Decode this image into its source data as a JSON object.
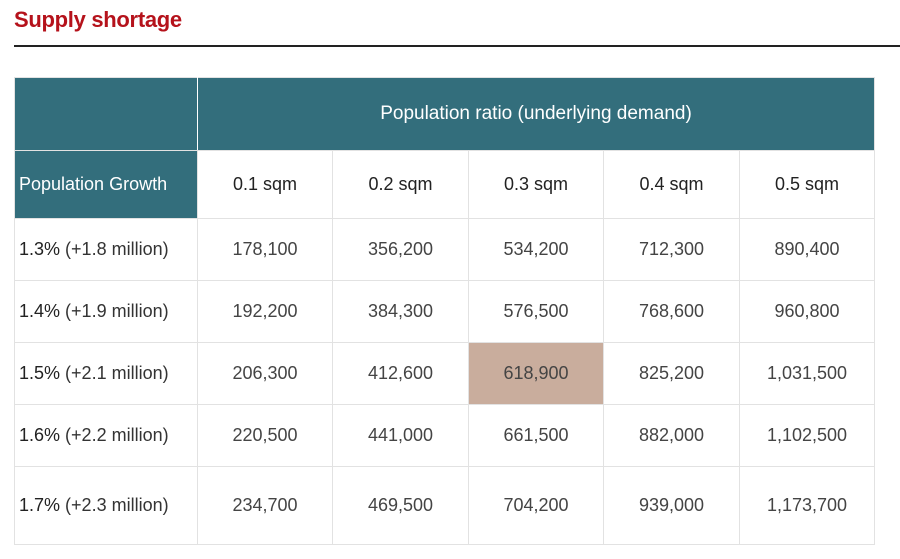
{
  "title": "Supply shortage",
  "chart_data": {
    "type": "table",
    "title": "Supply shortage",
    "column_group_header": "Population ratio (underlying demand)",
    "row_header": "Population Growth",
    "columns": [
      "0.1 sqm",
      "0.2 sqm",
      "0.3 sqm",
      "0.4 sqm",
      "0.5 sqm"
    ],
    "rows": [
      {
        "rate": "1.3%",
        "detail": "(+1.8 million)",
        "values": [
          "178,100",
          "356,200",
          "534,200",
          "712,300",
          "890,400"
        ]
      },
      {
        "rate": "1.4%",
        "detail": "(+1.9 million)",
        "values": [
          "192,200",
          "384,300",
          "576,500",
          "768,600",
          "960,800"
        ]
      },
      {
        "rate": "1.5%",
        "detail": "(+2.1 million)",
        "values": [
          "206,300",
          "412,600",
          "618,900",
          "825,200",
          "1,031,500"
        ]
      },
      {
        "rate": "1.6%",
        "detail": "(+2.2 million)",
        "values": [
          "220,500",
          "441,000",
          "661,500",
          "882,000",
          "1,102,500"
        ]
      },
      {
        "rate": "1.7%",
        "detail": "(+2.3 million)",
        "values": [
          "234,700",
          "469,500",
          "704,200",
          "939,000",
          "1,173,700"
        ]
      }
    ],
    "highlighted_cell": {
      "row": 2,
      "column": 2
    },
    "colors": {
      "header_background": "#336e7c",
      "highlight": "#c9ad9d",
      "title": "#b5121b"
    }
  }
}
